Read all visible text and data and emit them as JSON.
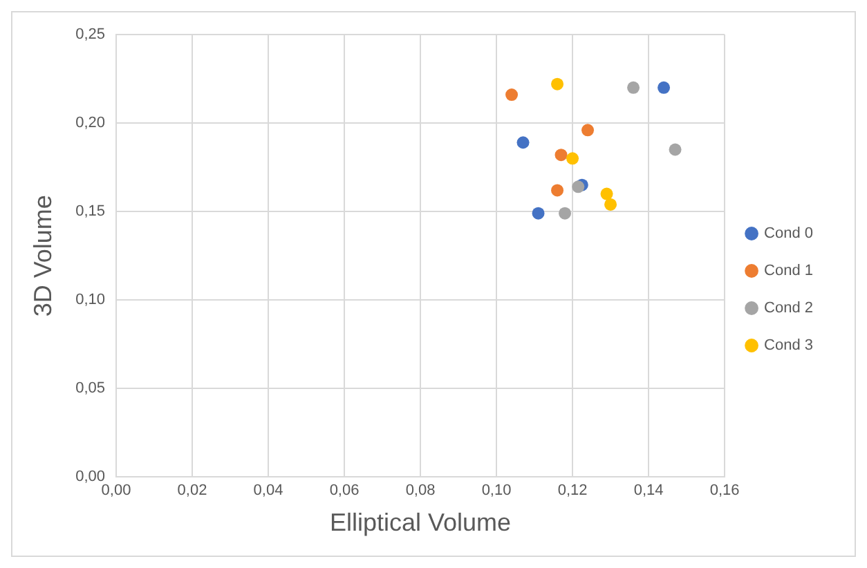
{
  "chart_data": {
    "type": "scatter",
    "xlabel": "Elliptical Volume",
    "ylabel": "3D Volume",
    "series": [
      {
        "name": "Cond 0",
        "color": "#4472c4",
        "x": [
          0.107,
          0.111,
          0.1225,
          0.144
        ],
        "values": [
          0.189,
          0.149,
          0.165,
          0.22
        ]
      },
      {
        "name": "Cond 1",
        "color": "#ed7d31",
        "x": [
          0.104,
          0.124,
          0.117,
          0.116
        ],
        "values": [
          0.216,
          0.196,
          0.182,
          0.162
        ]
      },
      {
        "name": "Cond 2",
        "color": "#a5a5a5",
        "x": [
          0.136,
          0.147,
          0.1215,
          0.118
        ],
        "values": [
          0.22,
          0.185,
          0.164,
          0.149
        ]
      },
      {
        "name": "Cond 3",
        "color": "#ffc000",
        "x": [
          0.116,
          0.12,
          0.129,
          0.13
        ],
        "values": [
          0.222,
          0.18,
          0.16,
          0.154
        ]
      }
    ],
    "xlim": [
      0,
      0.16
    ],
    "ylim": [
      0,
      0.25
    ],
    "xticks": [
      {
        "value": 0,
        "label": "0,00"
      },
      {
        "value": 0.02,
        "label": "0,02"
      },
      {
        "value": 0.04,
        "label": "0,04"
      },
      {
        "value": 0.06,
        "label": "0,06"
      },
      {
        "value": 0.08,
        "label": "0,08"
      },
      {
        "value": 0.1,
        "label": "0,10"
      },
      {
        "value": 0.12,
        "label": "0,12"
      },
      {
        "value": 0.14,
        "label": "0,14"
      },
      {
        "value": 0.16,
        "label": "0,16"
      }
    ],
    "yticks": [
      {
        "value": 0,
        "label": "0,00"
      },
      {
        "value": 0.05,
        "label": "0,05"
      },
      {
        "value": 0.1,
        "label": "0,10"
      },
      {
        "value": 0.15,
        "label": "0,15"
      },
      {
        "value": 0.2,
        "label": "0,20"
      },
      {
        "value": 0.25,
        "label": "0,25"
      }
    ],
    "grid": true,
    "legend": "right",
    "marker": "circle"
  }
}
